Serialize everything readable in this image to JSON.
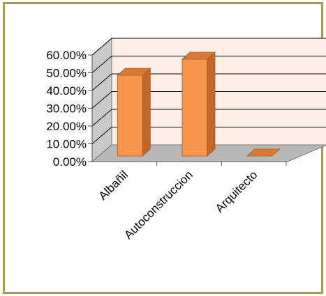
{
  "chart_data": {
    "type": "bar",
    "style": "3d-column",
    "categories": [
      "Albañil",
      "Autoconstruccion",
      "Arquitecto"
    ],
    "series": [
      {
        "values": [
          0.4545,
          0.5455,
          0.0
        ]
      }
    ],
    "yaxis": {
      "min": 0,
      "max": 0.6,
      "step": 0.1,
      "tick_labels": [
        "0.00%",
        "10.00%",
        "20.00%",
        "30.00%",
        "40.00%",
        "50.00%",
        "60.00%"
      ]
    },
    "grid": true,
    "legend": "none",
    "colors": {
      "bar_front": "#f7954a",
      "bar_side": "#c0682a",
      "bar_top": "#d97a35",
      "bar_outline": "#a85a20",
      "back_wall": "#fdeee6",
      "side_wall": "#c9c9c9",
      "floor": "#b8b8b8",
      "gridline": "#000000",
      "frame": "#a89a5a"
    }
  }
}
